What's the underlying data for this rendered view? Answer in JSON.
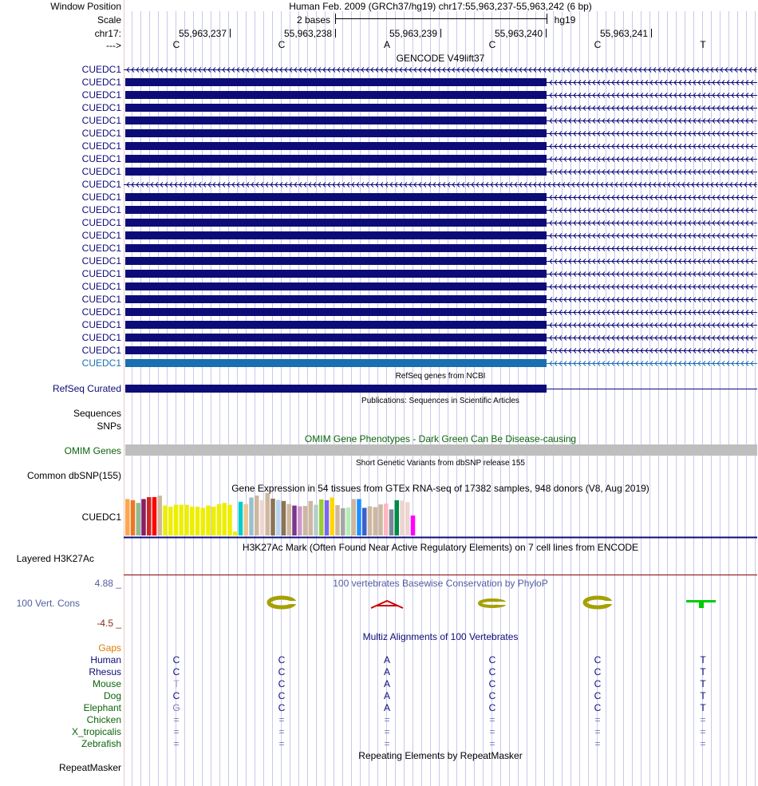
{
  "header": {
    "window_position_label": "Window Position",
    "scale_label": "Scale",
    "chrom_label": "chr17:",
    "strand_label": "--->",
    "title": "Human Feb. 2009 (GRCh37/hg19)   chr17:55,963,237-55,963,242 (6 bp)",
    "scale_text": "2 bases",
    "assembly": "hg19",
    "coords": [
      "55,963,237",
      "55,963,238",
      "55,963,239",
      "55,963,240",
      "55,963,241"
    ],
    "bases": [
      "C",
      "C",
      "A",
      "C",
      "C",
      "T"
    ]
  },
  "gencode": {
    "title": "GENCODE V49lift37",
    "rows": [
      {
        "label": "CUEDC1",
        "type": "intron"
      },
      {
        "label": "CUEDC1",
        "type": "exon"
      },
      {
        "label": "CUEDC1",
        "type": "exon"
      },
      {
        "label": "CUEDC1",
        "type": "exon"
      },
      {
        "label": "CUEDC1",
        "type": "exon"
      },
      {
        "label": "CUEDC1",
        "type": "exon"
      },
      {
        "label": "CUEDC1",
        "type": "exon"
      },
      {
        "label": "CUEDC1",
        "type": "exon"
      },
      {
        "label": "CUEDC1",
        "type": "exon"
      },
      {
        "label": "CUEDC1",
        "type": "intron"
      },
      {
        "label": "CUEDC1",
        "type": "exon"
      },
      {
        "label": "CUEDC1",
        "type": "exon"
      },
      {
        "label": "CUEDC1",
        "type": "exon"
      },
      {
        "label": "CUEDC1",
        "type": "exon"
      },
      {
        "label": "CUEDC1",
        "type": "exon"
      },
      {
        "label": "CUEDC1",
        "type": "exon"
      },
      {
        "label": "CUEDC1",
        "type": "exon"
      },
      {
        "label": "CUEDC1",
        "type": "exon"
      },
      {
        "label": "CUEDC1",
        "type": "exon"
      },
      {
        "label": "CUEDC1",
        "type": "exon"
      },
      {
        "label": "CUEDC1",
        "type": "exon"
      },
      {
        "label": "CUEDC1",
        "type": "exon"
      },
      {
        "label": "CUEDC1",
        "type": "exon"
      },
      {
        "label": "CUEDC1",
        "type": "exon-highlight"
      }
    ]
  },
  "refseq": {
    "title": "RefSeq genes from NCBI",
    "label": "RefSeq Curated"
  },
  "publications": {
    "title": "Publications: Sequences in Scientific Articles",
    "label1": "Sequences",
    "label2": "SNPs"
  },
  "omim": {
    "title": "OMIM Gene Phenotypes - Dark Green Can Be Disease-causing",
    "label": "OMIM Genes"
  },
  "dbsnp": {
    "title": "Short Genetic Variants from dbSNP release 155",
    "label": "Common dbSNP(155)"
  },
  "gtex": {
    "title": "Gene Expression in 54 tissues from GTEx RNA-seq of 17382 samples, 948 donors (V8, Aug 2019)",
    "label": "CUEDC1",
    "values": [
      0.95,
      0.92,
      0.85,
      0.95,
      1.0,
      1.0,
      1.04,
      0.78,
      0.75,
      0.8,
      0.8,
      0.8,
      0.75,
      0.75,
      0.72,
      0.78,
      0.75,
      0.82,
      0.85,
      0.8,
      0.1,
      0.88,
      0.82,
      0.99,
      1.04,
      0.92,
      1.11,
      0.96,
      0.93,
      0.9,
      0.82,
      0.78,
      0.76,
      0.77,
      0.9,
      0.8,
      0.94,
      0.92,
      0.99,
      0.79,
      0.71,
      0.73,
      0.95,
      0.95,
      0.72,
      0.76,
      0.74,
      0.81,
      0.83,
      0.68,
      0.92,
      0.91,
      0.87,
      0.52
    ],
    "colors": [
      "#ffa54f",
      "#ee7621",
      "#8fbc8f",
      "#8b1c62",
      "#cd2626",
      "#ff0000",
      "#cdb79e",
      "#eeee00",
      "#eeee00",
      "#eeee00",
      "#eeee00",
      "#eeee00",
      "#eeee00",
      "#eeee00",
      "#eeee00",
      "#eeee00",
      "#eeee00",
      "#eeee00",
      "#eeee00",
      "#eeee00",
      "#eeee00",
      "#00cdcd",
      "#eec591",
      "#9ac0cd",
      "#cdb79e",
      "#eed5d2",
      "#cdb79e",
      "#8b7355",
      "#b9d3ee",
      "#8b7355",
      "#cdb79e",
      "#7a378b",
      "#cd96cd",
      "#cdb79e",
      "#cdb79e",
      "#b4cdcd",
      "#9acd32",
      "#7a67ee",
      "#ffd700",
      "#cdb79e",
      "#a6a6a6",
      "#b4eeb4",
      "#cdb79e",
      "#1e90ff",
      "#3a5fcd",
      "#cdb79e",
      "#cdb79e",
      "#cdb79e",
      "#ffb6c1",
      "#778899",
      "#008b45",
      "#eed5d2",
      "#eed5d2",
      "#ff00ff"
    ]
  },
  "h3k27ac": {
    "title": "H3K27Ac Mark (Often Found Near Active Regulatory Elements) on 7 cell lines from ENCODE",
    "label": "Layered H3K27Ac"
  },
  "phylop": {
    "title": "100 vertebrates Basewise Conservation by PhyloP",
    "label": "100 Vert. Cons",
    "max": "4.88 _",
    "min": "-4.5 _"
  },
  "multiz": {
    "title": "Multiz Alignments of 100 Vertebrates",
    "gaps_label": "Gaps",
    "species": [
      {
        "name": "Human",
        "bases": [
          "C",
          "C",
          "A",
          "C",
          "C",
          "T"
        ],
        "first_color": "#0c0c78"
      },
      {
        "name": "Rhesus",
        "bases": [
          "C",
          "C",
          "A",
          "C",
          "C",
          "T"
        ],
        "first_color": "#0c0c78"
      },
      {
        "name": "Mouse",
        "bases": [
          "T",
          "C",
          "A",
          "C",
          "C",
          "T"
        ],
        "first_color": "#9898c8"
      },
      {
        "name": "Dog",
        "bases": [
          "C",
          "C",
          "A",
          "C",
          "C",
          "T"
        ],
        "first_color": "#0c0c78"
      },
      {
        "name": "Elephant",
        "bases": [
          "G",
          "C",
          "A",
          "C",
          "C",
          "T"
        ],
        "first_color": "#7878b8"
      },
      {
        "name": "Chicken",
        "bases": [
          "=",
          "=",
          "=",
          "=",
          "=",
          "="
        ],
        "first_color": "#7878b8"
      },
      {
        "name": "X_tropicalis",
        "bases": [
          "=",
          "=",
          "=",
          "=",
          "=",
          "="
        ],
        "first_color": "#7878b8"
      },
      {
        "name": "Zebrafish",
        "bases": [
          "=",
          "=",
          "=",
          "=",
          "=",
          "="
        ],
        "first_color": "#7878b8"
      }
    ]
  },
  "repeatmasker": {
    "title": "Repeating Elements by RepeatMasker",
    "label": "RepeatMasker"
  },
  "colors": {
    "navy": "#0c0c78",
    "highlight": "#1a6fb0",
    "grid": "#c8c8f0",
    "omim_bar": "#bebebe",
    "separator": "#8b0000",
    "phylop_glyph": "#a6a000",
    "phylop_a": "#cc0000",
    "phylop_t": "#00cc00"
  }
}
